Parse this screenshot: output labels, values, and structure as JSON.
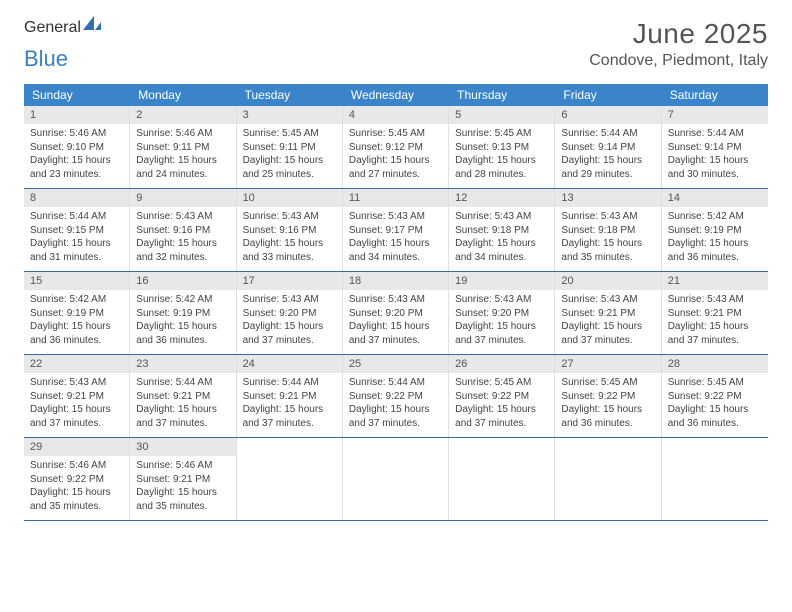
{
  "logo": {
    "text1": "General",
    "text2": "Blue",
    "text1_color": "#5a5a5a",
    "text2_color": "#3a7fc4"
  },
  "title": "June 2025",
  "location": "Condove, Piedmont, Italy",
  "colors": {
    "header_bg": "#3a85c9",
    "header_text": "#ffffff",
    "daynum_bg": "#e8e8e8",
    "row_border": "#3a6a9e",
    "cell_border": "#e0e0e0"
  },
  "day_names": [
    "Sunday",
    "Monday",
    "Tuesday",
    "Wednesday",
    "Thursday",
    "Friday",
    "Saturday"
  ],
  "days": [
    {
      "n": 1,
      "sunrise": "5:46 AM",
      "sunset": "9:10 PM",
      "dh": 15,
      "dm": 23
    },
    {
      "n": 2,
      "sunrise": "5:46 AM",
      "sunset": "9:11 PM",
      "dh": 15,
      "dm": 24
    },
    {
      "n": 3,
      "sunrise": "5:45 AM",
      "sunset": "9:11 PM",
      "dh": 15,
      "dm": 25
    },
    {
      "n": 4,
      "sunrise": "5:45 AM",
      "sunset": "9:12 PM",
      "dh": 15,
      "dm": 27
    },
    {
      "n": 5,
      "sunrise": "5:45 AM",
      "sunset": "9:13 PM",
      "dh": 15,
      "dm": 28
    },
    {
      "n": 6,
      "sunrise": "5:44 AM",
      "sunset": "9:14 PM",
      "dh": 15,
      "dm": 29
    },
    {
      "n": 7,
      "sunrise": "5:44 AM",
      "sunset": "9:14 PM",
      "dh": 15,
      "dm": 30
    },
    {
      "n": 8,
      "sunrise": "5:44 AM",
      "sunset": "9:15 PM",
      "dh": 15,
      "dm": 31
    },
    {
      "n": 9,
      "sunrise": "5:43 AM",
      "sunset": "9:16 PM",
      "dh": 15,
      "dm": 32
    },
    {
      "n": 10,
      "sunrise": "5:43 AM",
      "sunset": "9:16 PM",
      "dh": 15,
      "dm": 33
    },
    {
      "n": 11,
      "sunrise": "5:43 AM",
      "sunset": "9:17 PM",
      "dh": 15,
      "dm": 34
    },
    {
      "n": 12,
      "sunrise": "5:43 AM",
      "sunset": "9:18 PM",
      "dh": 15,
      "dm": 34
    },
    {
      "n": 13,
      "sunrise": "5:43 AM",
      "sunset": "9:18 PM",
      "dh": 15,
      "dm": 35
    },
    {
      "n": 14,
      "sunrise": "5:42 AM",
      "sunset": "9:19 PM",
      "dh": 15,
      "dm": 36
    },
    {
      "n": 15,
      "sunrise": "5:42 AM",
      "sunset": "9:19 PM",
      "dh": 15,
      "dm": 36
    },
    {
      "n": 16,
      "sunrise": "5:42 AM",
      "sunset": "9:19 PM",
      "dh": 15,
      "dm": 36
    },
    {
      "n": 17,
      "sunrise": "5:43 AM",
      "sunset": "9:20 PM",
      "dh": 15,
      "dm": 37
    },
    {
      "n": 18,
      "sunrise": "5:43 AM",
      "sunset": "9:20 PM",
      "dh": 15,
      "dm": 37
    },
    {
      "n": 19,
      "sunrise": "5:43 AM",
      "sunset": "9:20 PM",
      "dh": 15,
      "dm": 37
    },
    {
      "n": 20,
      "sunrise": "5:43 AM",
      "sunset": "9:21 PM",
      "dh": 15,
      "dm": 37
    },
    {
      "n": 21,
      "sunrise": "5:43 AM",
      "sunset": "9:21 PM",
      "dh": 15,
      "dm": 37
    },
    {
      "n": 22,
      "sunrise": "5:43 AM",
      "sunset": "9:21 PM",
      "dh": 15,
      "dm": 37
    },
    {
      "n": 23,
      "sunrise": "5:44 AM",
      "sunset": "9:21 PM",
      "dh": 15,
      "dm": 37
    },
    {
      "n": 24,
      "sunrise": "5:44 AM",
      "sunset": "9:21 PM",
      "dh": 15,
      "dm": 37
    },
    {
      "n": 25,
      "sunrise": "5:44 AM",
      "sunset": "9:22 PM",
      "dh": 15,
      "dm": 37
    },
    {
      "n": 26,
      "sunrise": "5:45 AM",
      "sunset": "9:22 PM",
      "dh": 15,
      "dm": 37
    },
    {
      "n": 27,
      "sunrise": "5:45 AM",
      "sunset": "9:22 PM",
      "dh": 15,
      "dm": 36
    },
    {
      "n": 28,
      "sunrise": "5:45 AM",
      "sunset": "9:22 PM",
      "dh": 15,
      "dm": 36
    },
    {
      "n": 29,
      "sunrise": "5:46 AM",
      "sunset": "9:22 PM",
      "dh": 15,
      "dm": 35
    },
    {
      "n": 30,
      "sunrise": "5:46 AM",
      "sunset": "9:21 PM",
      "dh": 15,
      "dm": 35
    }
  ],
  "labels": {
    "sunrise": "Sunrise:",
    "sunset": "Sunset:",
    "daylight": "Daylight:",
    "hours": "hours",
    "and": "and",
    "minutes": "minutes."
  },
  "layout": {
    "cols": 7,
    "first_day_offset": 0,
    "total_cells": 35
  }
}
